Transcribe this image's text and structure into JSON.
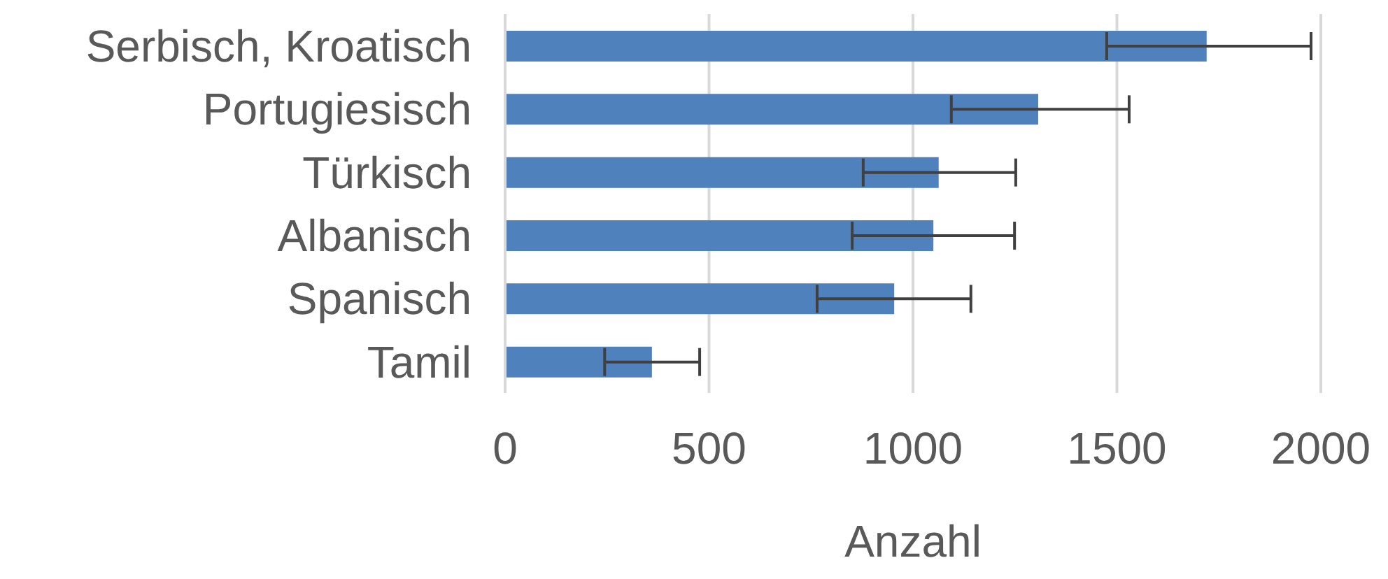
{
  "chart_data": {
    "type": "bar",
    "orientation": "horizontal",
    "xlabel": "Anzahl",
    "categories": [
      "Serbisch, Kroatisch",
      "Portugiesisch",
      "Türkisch",
      "Albanisch",
      "Spanisch",
      "Tamil"
    ],
    "values": [
      1720,
      1307,
      1063,
      1050,
      954,
      360
    ],
    "errors": [
      [
        1475,
        1976
      ],
      [
        1094,
        1530
      ],
      [
        878,
        1252
      ],
      [
        851,
        1249
      ],
      [
        765,
        1142
      ],
      [
        244,
        477
      ]
    ],
    "color": "#4f81bd",
    "xlim": [
      0,
      2000
    ],
    "xticks": [
      0,
      500,
      1000,
      1500,
      2000
    ],
    "grid": "x"
  }
}
